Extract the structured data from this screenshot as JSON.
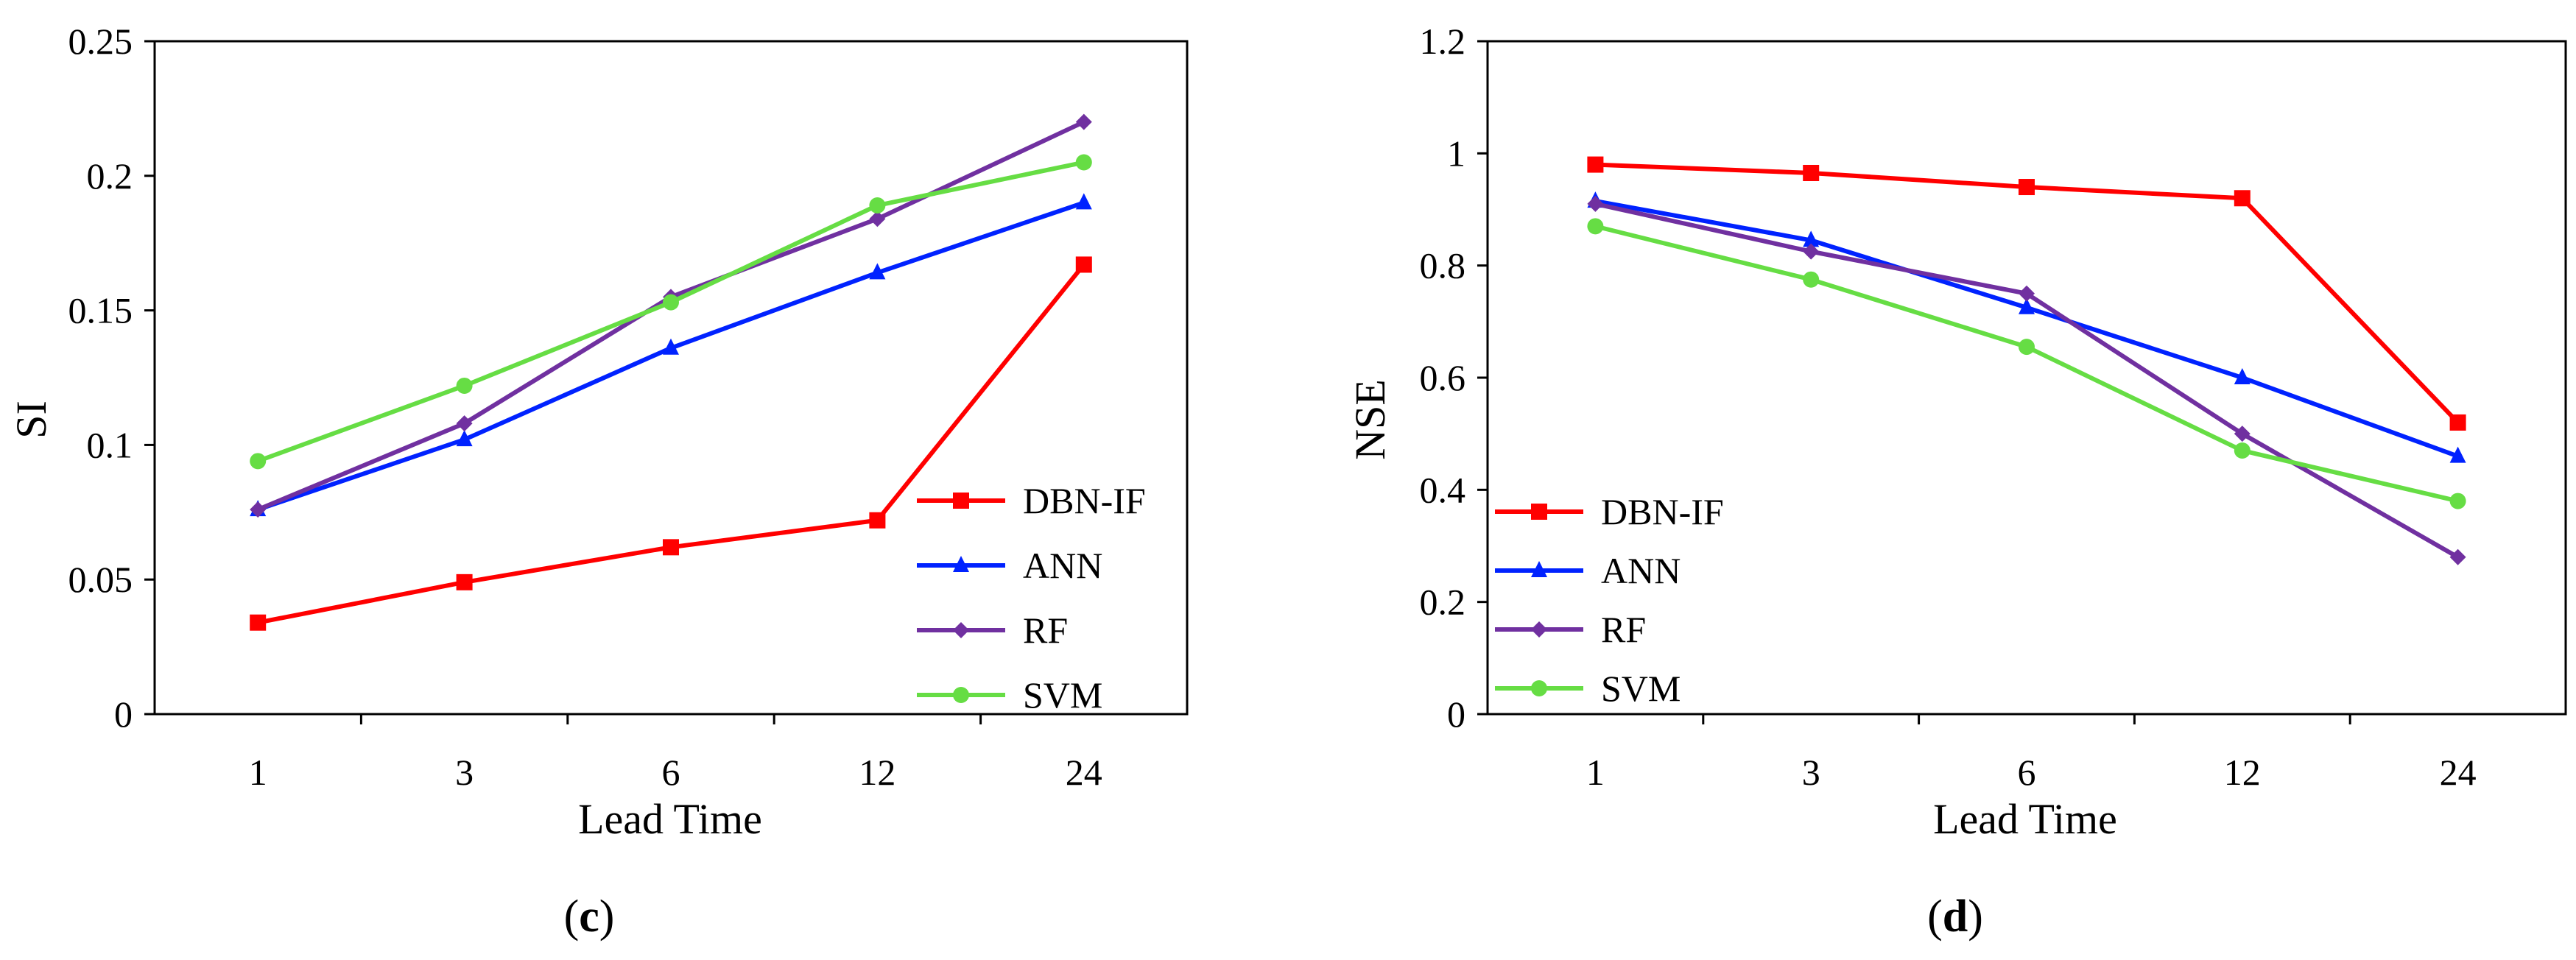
{
  "chart_data": [
    {
      "type": "line",
      "caption": "c",
      "categories": [
        "1",
        "3",
        "6",
        "12",
        "24"
      ],
      "xlabel": "Lead Time",
      "ylabel": "SI",
      "ylim": [
        0,
        0.25
      ],
      "yticks": [
        "0",
        "0.05",
        "0.1",
        "0.15",
        "0.2",
        "0.25"
      ],
      "ytick_values": [
        0,
        0.05,
        0.1,
        0.15,
        0.2,
        0.25
      ],
      "legend_position": "bottom-right",
      "series": [
        {
          "name": "DBN-IF",
          "color": "#ff0000",
          "marker": "square",
          "values": [
            0.034,
            0.049,
            0.062,
            0.072,
            0.167
          ]
        },
        {
          "name": "ANN",
          "color": "#0022ff",
          "marker": "triangle",
          "values": [
            0.076,
            0.102,
            0.136,
            0.164,
            0.19
          ]
        },
        {
          "name": "RF",
          "color": "#7030a0",
          "marker": "diamond",
          "values": [
            0.076,
            0.108,
            0.155,
            0.184,
            0.22
          ]
        },
        {
          "name": "SVM",
          "color": "#66dd44",
          "marker": "circle",
          "values": [
            0.094,
            0.122,
            0.153,
            0.189,
            0.205
          ]
        }
      ]
    },
    {
      "type": "line",
      "caption": "d",
      "categories": [
        "1",
        "3",
        "6",
        "12",
        "24"
      ],
      "xlabel": "Lead Time",
      "ylabel": "NSE",
      "ylim": [
        0,
        1.2
      ],
      "yticks": [
        "0",
        "0.2",
        "0.4",
        "0.6",
        "0.8",
        "1",
        "1.2"
      ],
      "ytick_values": [
        0,
        0.2,
        0.4,
        0.6,
        0.8,
        1.0,
        1.2
      ],
      "legend_position": "bottom-left",
      "series": [
        {
          "name": "DBN-IF",
          "color": "#ff0000",
          "marker": "square",
          "values": [
            0.98,
            0.965,
            0.94,
            0.92,
            0.52
          ]
        },
        {
          "name": "ANN",
          "color": "#0022ff",
          "marker": "triangle",
          "values": [
            0.915,
            0.845,
            0.725,
            0.6,
            0.46
          ]
        },
        {
          "name": "RF",
          "color": "#7030a0",
          "marker": "diamond",
          "values": [
            0.91,
            0.825,
            0.75,
            0.5,
            0.28
          ]
        },
        {
          "name": "SVM",
          "color": "#66dd44",
          "marker": "circle",
          "values": [
            0.87,
            0.775,
            0.655,
            0.47,
            0.38
          ]
        }
      ]
    }
  ]
}
